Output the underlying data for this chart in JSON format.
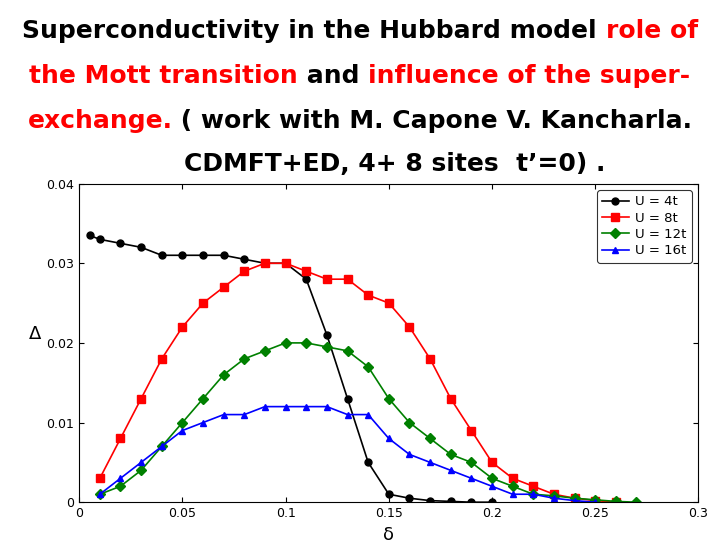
{
  "xlabel": "δ",
  "ylabel": "Δ",
  "xlim": [
    0,
    0.3
  ],
  "ylim": [
    0,
    0.04
  ],
  "xticks": [
    0,
    0.05,
    0.1,
    0.15,
    0.2,
    0.25,
    0.3
  ],
  "yticks": [
    0,
    0.01,
    0.02,
    0.03,
    0.04
  ],
  "background_color": "white",
  "title_fontsize": 18,
  "title_fontweight": "bold",
  "lines": [
    [
      {
        "text": "Superconductivity in the Hubbard model ",
        "color": "black"
      },
      {
        "text": "role of",
        "color": "red"
      }
    ],
    [
      {
        "text": "the Mott transition",
        "color": "red"
      },
      {
        "text": " and ",
        "color": "black"
      },
      {
        "text": "influence of the super-",
        "color": "red"
      }
    ],
    [
      {
        "text": "exchange.",
        "color": "red"
      },
      {
        "text": " ( work with M. Capone V. Kancharla.",
        "color": "black"
      }
    ],
    [
      {
        "text": "        CDMFT+ED, 4+ 8 sites  t’=0) .",
        "color": "black"
      }
    ]
  ],
  "series": [
    {
      "label": "U = 4t",
      "color": "black",
      "marker": "o",
      "x": [
        0.005,
        0.01,
        0.02,
        0.03,
        0.04,
        0.05,
        0.06,
        0.07,
        0.08,
        0.09,
        0.1,
        0.11,
        0.12,
        0.13,
        0.14,
        0.15,
        0.16,
        0.17,
        0.18,
        0.19,
        0.2
      ],
      "y": [
        0.0335,
        0.033,
        0.0325,
        0.032,
        0.031,
        0.031,
        0.031,
        0.031,
        0.0305,
        0.03,
        0.03,
        0.028,
        0.021,
        0.013,
        0.005,
        0.001,
        0.0005,
        0.0002,
        0.0001,
        0.0,
        0.0
      ]
    },
    {
      "label": "U = 8t",
      "color": "red",
      "marker": "s",
      "x": [
        0.01,
        0.02,
        0.03,
        0.04,
        0.05,
        0.06,
        0.07,
        0.08,
        0.09,
        0.1,
        0.11,
        0.12,
        0.13,
        0.14,
        0.15,
        0.16,
        0.17,
        0.18,
        0.19,
        0.2,
        0.21,
        0.22,
        0.23,
        0.24,
        0.25,
        0.26
      ],
      "y": [
        0.003,
        0.008,
        0.013,
        0.018,
        0.022,
        0.025,
        0.027,
        0.029,
        0.03,
        0.03,
        0.029,
        0.028,
        0.028,
        0.026,
        0.025,
        0.022,
        0.018,
        0.013,
        0.009,
        0.005,
        0.003,
        0.002,
        0.001,
        0.0005,
        0.0002,
        0.0
      ]
    },
    {
      "label": "U = 12t",
      "color": "green",
      "marker": "D",
      "x": [
        0.01,
        0.02,
        0.03,
        0.04,
        0.05,
        0.06,
        0.07,
        0.08,
        0.09,
        0.1,
        0.11,
        0.12,
        0.13,
        0.14,
        0.15,
        0.16,
        0.17,
        0.18,
        0.19,
        0.2,
        0.21,
        0.22,
        0.23,
        0.24,
        0.25,
        0.26,
        0.27
      ],
      "y": [
        0.001,
        0.002,
        0.004,
        0.007,
        0.01,
        0.013,
        0.016,
        0.018,
        0.019,
        0.02,
        0.02,
        0.0195,
        0.019,
        0.017,
        0.013,
        0.01,
        0.008,
        0.006,
        0.005,
        0.003,
        0.002,
        0.001,
        0.0008,
        0.0005,
        0.0003,
        0.0001,
        0.0
      ]
    },
    {
      "label": "U = 16t",
      "color": "blue",
      "marker": "^",
      "x": [
        0.01,
        0.02,
        0.03,
        0.04,
        0.05,
        0.06,
        0.07,
        0.08,
        0.09,
        0.1,
        0.11,
        0.12,
        0.13,
        0.14,
        0.15,
        0.16,
        0.17,
        0.18,
        0.19,
        0.2,
        0.21,
        0.22,
        0.23,
        0.24,
        0.25
      ],
      "y": [
        0.001,
        0.003,
        0.005,
        0.007,
        0.009,
        0.01,
        0.011,
        0.011,
        0.012,
        0.012,
        0.012,
        0.012,
        0.011,
        0.011,
        0.008,
        0.006,
        0.005,
        0.004,
        0.003,
        0.002,
        0.001,
        0.001,
        0.0005,
        0.0002,
        0.0
      ]
    }
  ]
}
